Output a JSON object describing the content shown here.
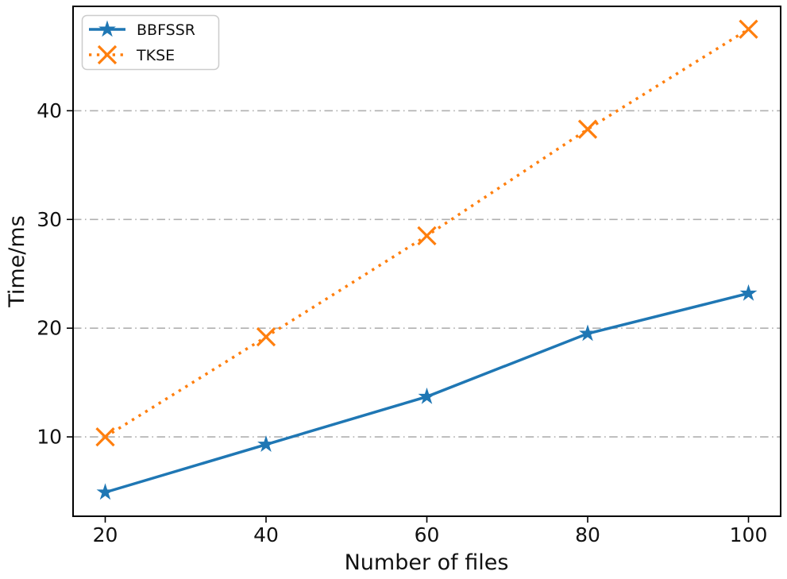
{
  "figure": {
    "background": "#ffffff"
  },
  "chart_data": {
    "type": "line",
    "title": "",
    "xlabel": "Number of files",
    "ylabel": "Time/ms",
    "x": [
      20,
      40,
      60,
      80,
      100
    ],
    "xticks": [
      "20",
      "40",
      "60",
      "80",
      "100"
    ],
    "yticks": [
      "10",
      "20",
      "30",
      "40"
    ],
    "xlim": [
      16,
      104
    ],
    "ylim": [
      2.7,
      49.6
    ],
    "grid": {
      "axis": "y",
      "style": "dash-dot",
      "color": "#b0b0b0"
    },
    "legend": {
      "position": "upper-left",
      "background": "#ffffff",
      "border_color": "#cccccc"
    },
    "series": [
      {
        "name": "BBFSSR",
        "color": "#1f77b4",
        "marker": "star",
        "linestyle": "solid",
        "values": [
          4.9,
          9.3,
          13.7,
          19.5,
          23.2
        ]
      },
      {
        "name": "TKSE",
        "color": "#ff7f0e",
        "marker": "x",
        "linestyle": "dotted",
        "values": [
          10.0,
          19.2,
          28.5,
          38.3,
          47.5
        ]
      }
    ]
  }
}
